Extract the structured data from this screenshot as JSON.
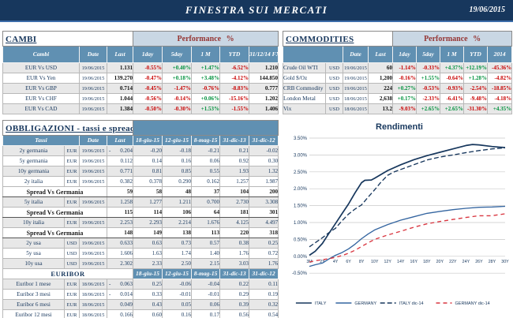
{
  "header": {
    "title": "FINESTRA SUI MERCATI",
    "date": "19/06/2015"
  },
  "colors": {
    "navy": "#17375D",
    "steel_header": "#6090B2",
    "band_blue": "#C9D7E4",
    "band_red_text": "#963634",
    "positive": "#00913D",
    "negative": "#C80000",
    "row_gray": "#E8E8E8"
  },
  "cambi": {
    "title": "CAMBI",
    "performance_title": "Performance %",
    "columns": [
      "Cambi",
      "Date",
      "Last",
      "1day",
      "5day",
      "1 M",
      "YTD",
      "31/12/14\nFX"
    ],
    "rows": [
      {
        "name": "EUR Vs USD",
        "date": "19/06/2015",
        "last": "1.131",
        "perf": [
          "-0.55%",
          "+0.40%",
          "+1.47%",
          "-6.52%"
        ],
        "fx": "1.210"
      },
      {
        "name": "EUR Vs Yen",
        "date": "19/06/2015",
        "last": "139.270",
        "perf": [
          "-0.47%",
          "+0.18%",
          "+3.48%",
          "-4.12%"
        ],
        "fx": "144.850"
      },
      {
        "name": "EUR Vs GBP",
        "date": "19/06/2015",
        "last": "0.714",
        "perf": [
          "-0.45%",
          "-1.47%",
          "-0.76%",
          "-8.83%"
        ],
        "fx": "0.777"
      },
      {
        "name": "EUR Vs CHF",
        "date": "19/06/2015",
        "last": "1.044",
        "perf": [
          "-0.56%",
          "-0.14%",
          "+0.06%",
          "-15.16%"
        ],
        "fx": "1.202"
      },
      {
        "name": "EUR Vs CAD",
        "date": "19/06/2015",
        "last": "1.384",
        "perf": [
          "-0.50%",
          "-0.30%",
          "+1.53%",
          "-1.55%"
        ],
        "fx": "1.406"
      }
    ]
  },
  "commodities": {
    "title": "COMMODITIES",
    "performance_title": "Performance %",
    "columns": [
      "",
      "Date",
      "Last",
      "1day",
      "5day",
      "1 M",
      "YTD",
      "2014"
    ],
    "rows": [
      {
        "name": "Crude Oil WTI",
        "ccy": "USD",
        "date": "19/06/2015",
        "last": "60",
        "perf": [
          "-1.14%",
          "-0.33%",
          "+4.37%",
          "+12.19%",
          "-45.36%"
        ]
      },
      {
        "name": "Gold $/Oz",
        "ccy": "USD",
        "date": "19/06/2015",
        "last": "1,200",
        "perf": [
          "-0.16%",
          "+1.55%",
          "-0.64%",
          "+1.28%",
          "-4.82%"
        ]
      },
      {
        "name": "CRB Commodity",
        "ccy": "USD",
        "date": "19/06/2015",
        "last": "224",
        "perf": [
          "+0.27%",
          "-0.53%",
          "-0.93%",
          "-2.54%",
          "-18.85%"
        ]
      },
      {
        "name": "London Metal",
        "ccy": "USD",
        "date": "18/06/2015",
        "last": "2,638",
        "perf": [
          "+0.17%",
          "-2.33%",
          "-6.41%",
          "-9.48%",
          "-4.18%"
        ]
      },
      {
        "name": "Vix",
        "ccy": "USD",
        "date": "18/06/2015",
        "last": "13.2",
        "perf": [
          "-9.03%",
          "+2.65%",
          "+2.65%",
          "-31.30%",
          "+4.35%"
        ]
      }
    ]
  },
  "obbligazioni": {
    "title": "OBBLIGAZIONI - tassi e spread",
    "header": {
      "tassi": "Tassi",
      "date": "Date",
      "last": "Last",
      "history": [
        "18-giu-15",
        "12-giu-15",
        "8-mag-15",
        "31-dic-13",
        "31-dic-12"
      ]
    },
    "rows": [
      {
        "type": "rate",
        "shade": "g",
        "name": "2y germania",
        "ccy": "EUR",
        "date": "19/06/2015",
        "last_negative": true,
        "last": "0.204",
        "values": [
          "-0.20",
          "-0.18",
          "-0.21",
          "0.21",
          "-0.02"
        ]
      },
      {
        "type": "rate",
        "shade": "w",
        "name": "5y germania",
        "ccy": "EUR",
        "date": "19/06/2015",
        "last_negative": false,
        "last": "0.112",
        "values": [
          "0.14",
          "0.16",
          "0.06",
          "0.92",
          "0.30"
        ]
      },
      {
        "type": "rate",
        "shade": "g",
        "name": "10y germania",
        "ccy": "EUR",
        "date": "19/06/2015",
        "last_negative": false,
        "last": "0.771",
        "values": [
          "0.81",
          "0.85",
          "0.55",
          "1.93",
          "1.32"
        ]
      },
      {
        "type": "rate",
        "shade": "w",
        "name": "2y italia",
        "ccy": "EUR",
        "date": "19/06/2015",
        "last_negative": false,
        "last": "0.382",
        "values": [
          "0.378",
          "0.290",
          "0.162",
          "1.257",
          "1.987"
        ]
      },
      {
        "type": "spread",
        "name": "Spread Vs Germania",
        "last": "59",
        "values": [
          "58",
          "48",
          "37",
          "104",
          "200"
        ]
      },
      {
        "type": "rate",
        "shade": "g",
        "name": "5y italia",
        "ccy": "EUR",
        "date": "19/06/2015",
        "last_negative": false,
        "last": "1.258",
        "values": [
          "1.277",
          "1.211",
          "0.700",
          "2.730",
          "3.308"
        ]
      },
      {
        "type": "spread",
        "name": "Spread Vs Germania",
        "last": "115",
        "values": [
          "114",
          "106",
          "64",
          "181",
          "301"
        ]
      },
      {
        "type": "rate",
        "shade": "g",
        "name": "10y italia",
        "ccy": "EUR",
        "date": "19/06/2015",
        "last_negative": false,
        "last": "2.253",
        "values": [
          "2.293",
          "2.214",
          "1.676",
          "4.125",
          "4.497"
        ]
      },
      {
        "type": "spread",
        "name": "Spread Vs Germania",
        "last": "148",
        "values": [
          "149",
          "138",
          "113",
          "220",
          "318"
        ]
      },
      {
        "type": "rate",
        "shade": "g",
        "name": "2y usa",
        "ccy": "USD",
        "date": "19/06/2015",
        "last_negative": false,
        "last": "0.633",
        "values": [
          "0.63",
          "0.73",
          "0.57",
          "0.38",
          "0.25"
        ]
      },
      {
        "type": "rate",
        "shade": "w",
        "name": "5y usa",
        "ccy": "USD",
        "date": "19/06/2015",
        "last_negative": false,
        "last": "1.606",
        "values": [
          "1.63",
          "1.74",
          "1.40",
          "1.76",
          "0.72"
        ]
      },
      {
        "type": "rate",
        "shade": "g",
        "name": "10y usa",
        "ccy": "USD",
        "date": "19/06/2015",
        "last_negative": false,
        "last": "2.302",
        "values": [
          "2.33",
          "2.50",
          "2.15",
          "3.03",
          "1.76"
        ]
      }
    ],
    "euribor": {
      "title": "EURIBOR",
      "history": [
        "18-giu-15",
        "12-giu-15",
        "8-mag-15",
        "31-dic-13",
        "31-dic-12"
      ],
      "rows": [
        {
          "shade": "g",
          "name": "Euribor 1 mese",
          "ccy": "EUR",
          "date": "18/06/2015",
          "last_negative": true,
          "last": "0.063",
          "values": [
            "0.25",
            "-0.06",
            "-0.04",
            "0.22",
            "0.11"
          ]
        },
        {
          "shade": "w",
          "name": "Euribor 3 mesi",
          "ccy": "EUR",
          "date": "18/06/2015",
          "last_negative": true,
          "last": "0.014",
          "values": [
            "0.33",
            "-0.01",
            "-0.01",
            "0.29",
            "0.19"
          ]
        },
        {
          "shade": "g",
          "name": "Euribor 6 mesi",
          "ccy": "EUR",
          "date": "18/06/2015",
          "last_negative": false,
          "last": "0.049",
          "values": [
            "0.43",
            "0.05",
            "0.06",
            "0.39",
            "0.32"
          ]
        },
        {
          "shade": "w",
          "name": "Euribor 12 mesi",
          "ccy": "EUR",
          "date": "18/06/2015",
          "last_negative": false,
          "last": "0.166",
          "values": [
            "0.60",
            "0.16",
            "0.17",
            "0.56",
            "0.54"
          ]
        }
      ]
    }
  },
  "chart_data": {
    "type": "line",
    "title": "Rendimenti",
    "x_ticks": [
      "3M",
      "2Y",
      "4Y",
      "6Y",
      "8Y",
      "10Y",
      "12Y",
      "14Y",
      "16Y",
      "18Y",
      "20Y",
      "22Y",
      "24Y",
      "26Y",
      "28Y",
      "30Y"
    ],
    "y_ticks": [
      "3.50%",
      "3.00%",
      "2.50%",
      "2.00%",
      "1.50%",
      "1.00%",
      "0.50%",
      "0.00%",
      "-0.50%"
    ],
    "ylim": [
      -0.5,
      3.5
    ],
    "ystep": 0.5,
    "grid": true,
    "legend_position": "bottom",
    "series": [
      {
        "name": "ITALY",
        "color": "#17375D",
        "dash": "none",
        "x": [
          0,
          0.45,
          1,
          1.5,
          2,
          2.5,
          3,
          3.5,
          4,
          4.25,
          4.75,
          5,
          6,
          7,
          8,
          9,
          10,
          11,
          12,
          12.5,
          13,
          14,
          15
        ],
        "y": [
          0.03,
          0.15,
          0.38,
          0.68,
          0.97,
          1.26,
          1.55,
          1.88,
          2.18,
          2.25,
          2.26,
          2.31,
          2.54,
          2.71,
          2.86,
          2.98,
          3.08,
          3.18,
          3.28,
          3.31,
          3.3,
          3.25,
          3.22
        ]
      },
      {
        "name": "GERMANY",
        "color": "#3465A0",
        "dash": "none",
        "x": [
          0,
          0.45,
          1,
          1.5,
          2,
          2.5,
          3,
          3.5,
          4,
          4.5,
          5,
          6,
          7,
          8,
          9,
          10,
          11,
          12,
          13,
          14,
          15
        ],
        "y": [
          -0.3,
          -0.25,
          -0.2,
          -0.08,
          0.03,
          0.11,
          0.22,
          0.36,
          0.52,
          0.66,
          0.78,
          0.94,
          1.07,
          1.17,
          1.27,
          1.33,
          1.38,
          1.42,
          1.45,
          1.46,
          1.48
        ]
      },
      {
        "name": "ITALY dic-14",
        "color": "#17375D",
        "dash": "6,3",
        "x": [
          0,
          1,
          1.5,
          2,
          2.5,
          3,
          3.5,
          4,
          4.5,
          5,
          5.5,
          6,
          6.5,
          7,
          8,
          9,
          10,
          11,
          12,
          13,
          14,
          15
        ],
        "y": [
          0.28,
          0.55,
          0.7,
          0.83,
          1.05,
          1.25,
          1.4,
          1.52,
          1.75,
          1.97,
          2.2,
          2.4,
          2.5,
          2.57,
          2.71,
          2.85,
          2.94,
          3.0,
          3.07,
          3.13,
          3.18,
          3.21
        ]
      },
      {
        "name": "GERMANY dic-14",
        "color": "#D93640",
        "dash": "5,4",
        "x": [
          0,
          0.45,
          1,
          1.5,
          2,
          2.5,
          3,
          3.5,
          4,
          4.5,
          5,
          6,
          7,
          8,
          9,
          10,
          11,
          12,
          13,
          14,
          15
        ],
        "y": [
          -0.17,
          -0.13,
          -0.1,
          -0.07,
          -0.03,
          0.02,
          0.09,
          0.18,
          0.29,
          0.4,
          0.5,
          0.63,
          0.74,
          0.86,
          0.96,
          1.03,
          1.09,
          1.15,
          1.2,
          1.2,
          1.26
        ]
      }
    ]
  }
}
